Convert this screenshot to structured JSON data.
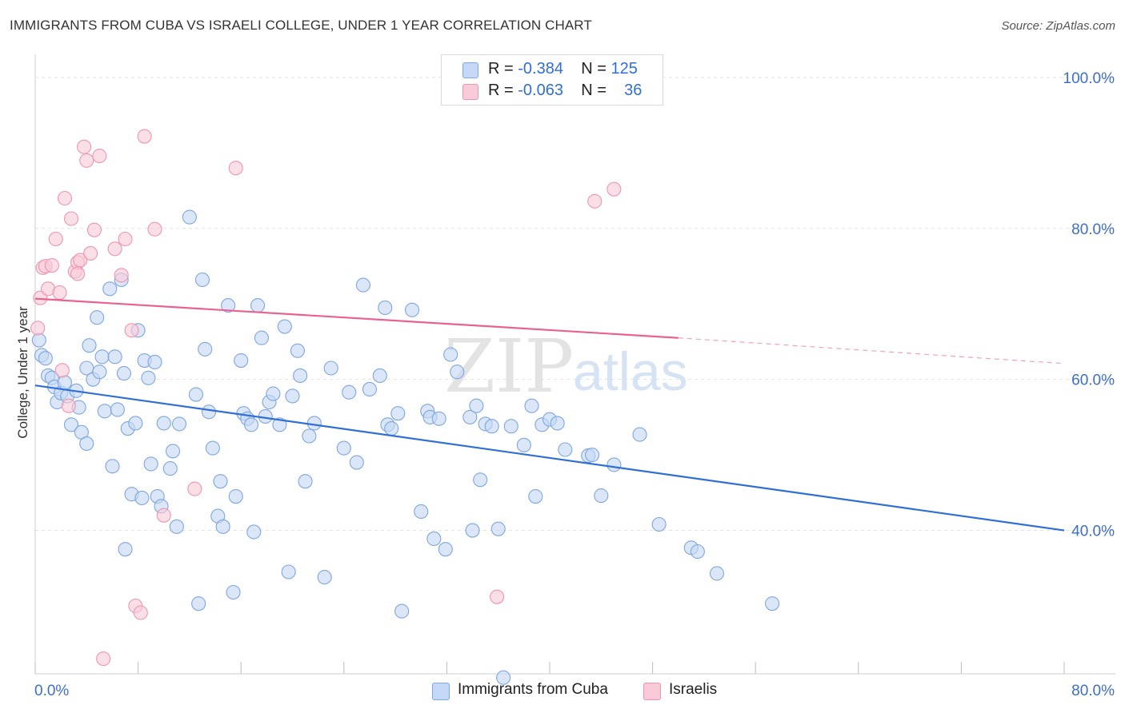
{
  "title": "IMMIGRANTS FROM CUBA VS ISRAELI COLLEGE, UNDER 1 YEAR CORRELATION CHART",
  "source": "Source: ZipAtlas.com",
  "watermark": {
    "zip": "ZIP",
    "atlas": "atlas"
  },
  "legend": {
    "rows": [
      {
        "r_label": "R = ",
        "r_value": "-0.384",
        "n_label": "N = ",
        "n_value": "125"
      },
      {
        "r_label": "R = ",
        "r_value": "-0.063",
        "n_label": "N = ",
        "n_value": "36"
      }
    ]
  },
  "colors": {
    "blue_fill": "#c5d8f5",
    "blue_stroke": "#7ea6e0",
    "blue_line": "#2f6fd6",
    "pink_fill": "#f9cbd8",
    "pink_stroke": "#f095b1",
    "pink_line": "#e8638e",
    "axis_text": "#3d6fc7",
    "grid": "#e2e2e2"
  },
  "chart_data": {
    "type": "scatter",
    "title": "IMMIGRANTS FROM CUBA VS ISRAELI COLLEGE, UNDER 1 YEAR CORRELATION CHART",
    "xlabel": "",
    "ylabel": "College, Under 1 year",
    "xlim": [
      0,
      80
    ],
    "ylim": [
      21,
      102
    ],
    "x_tick_labels": [
      "0.0%",
      "80.0%"
    ],
    "y_tick_labels": [
      "100.0%",
      "80.0%",
      "60.0%",
      "40.0%"
    ],
    "y_ticks": [
      100,
      80,
      60,
      40
    ],
    "grid": true,
    "legend_position": "bottom",
    "series": [
      {
        "name": "Immigrants from Cuba",
        "trend": {
          "x": [
            0,
            80
          ],
          "y": [
            59.2,
            40.0
          ]
        },
        "points": [
          [
            0.3,
            65.2
          ],
          [
            0.5,
            63.2
          ],
          [
            0.8,
            62.8
          ],
          [
            1.0,
            60.5
          ],
          [
            1.3,
            60.2
          ],
          [
            1.5,
            59.0
          ],
          [
            1.7,
            57.0
          ],
          [
            2.0,
            58.2
          ],
          [
            2.3,
            59.6
          ],
          [
            2.5,
            57.8
          ],
          [
            2.8,
            54.0
          ],
          [
            3.2,
            58.5
          ],
          [
            3.4,
            56.3
          ],
          [
            3.6,
            53.0
          ],
          [
            4.0,
            51.5
          ],
          [
            4.0,
            61.5
          ],
          [
            4.2,
            64.5
          ],
          [
            4.5,
            60.0
          ],
          [
            4.8,
            68.2
          ],
          [
            5.0,
            61.0
          ],
          [
            5.2,
            63.0
          ],
          [
            5.4,
            55.8
          ],
          [
            5.8,
            72.0
          ],
          [
            6.0,
            48.5
          ],
          [
            6.2,
            63.0
          ],
          [
            6.4,
            56.0
          ],
          [
            6.7,
            73.2
          ],
          [
            6.9,
            60.8
          ],
          [
            7.0,
            37.5
          ],
          [
            7.2,
            53.5
          ],
          [
            7.5,
            44.8
          ],
          [
            7.8,
            54.2
          ],
          [
            8.0,
            66.5
          ],
          [
            8.3,
            44.3
          ],
          [
            8.5,
            62.5
          ],
          [
            8.8,
            60.2
          ],
          [
            9.0,
            48.8
          ],
          [
            9.3,
            62.3
          ],
          [
            9.5,
            44.5
          ],
          [
            9.8,
            43.2
          ],
          [
            10.0,
            54.2
          ],
          [
            10.5,
            48.2
          ],
          [
            10.7,
            50.5
          ],
          [
            11.0,
            40.5
          ],
          [
            11.2,
            54.1
          ],
          [
            12.0,
            81.5
          ],
          [
            12.5,
            58.0
          ],
          [
            12.7,
            30.3
          ],
          [
            13.0,
            73.2
          ],
          [
            13.2,
            64.0
          ],
          [
            13.5,
            55.7
          ],
          [
            13.8,
            50.9
          ],
          [
            14.2,
            41.9
          ],
          [
            14.4,
            46.5
          ],
          [
            14.6,
            40.5
          ],
          [
            15.0,
            69.8
          ],
          [
            15.4,
            31.8
          ],
          [
            15.6,
            44.5
          ],
          [
            16.0,
            62.5
          ],
          [
            16.2,
            55.5
          ],
          [
            16.5,
            54.8
          ],
          [
            16.8,
            54.0
          ],
          [
            17.0,
            39.8
          ],
          [
            17.3,
            69.8
          ],
          [
            17.6,
            65.5
          ],
          [
            17.9,
            55.1
          ],
          [
            18.2,
            57.0
          ],
          [
            18.5,
            58.1
          ],
          [
            19.0,
            54.0
          ],
          [
            19.4,
            67.0
          ],
          [
            19.7,
            34.5
          ],
          [
            20.0,
            57.8
          ],
          [
            20.4,
            63.8
          ],
          [
            20.6,
            60.5
          ],
          [
            21.0,
            46.5
          ],
          [
            21.3,
            52.5
          ],
          [
            21.7,
            54.2
          ],
          [
            22.5,
            33.8
          ],
          [
            23.0,
            61.5
          ],
          [
            24.0,
            50.9
          ],
          [
            24.4,
            58.3
          ],
          [
            25.0,
            49.0
          ],
          [
            25.5,
            72.5
          ],
          [
            26.0,
            58.7
          ],
          [
            26.8,
            60.5
          ],
          [
            27.2,
            69.5
          ],
          [
            27.4,
            54.0
          ],
          [
            27.7,
            53.5
          ],
          [
            28.2,
            55.5
          ],
          [
            28.5,
            29.3
          ],
          [
            29.3,
            69.2
          ],
          [
            30.0,
            42.5
          ],
          [
            30.5,
            55.8
          ],
          [
            30.7,
            55.0
          ],
          [
            31.0,
            38.9
          ],
          [
            31.4,
            54.8
          ],
          [
            31.9,
            37.5
          ],
          [
            32.3,
            63.3
          ],
          [
            32.8,
            61.0
          ],
          [
            33.8,
            55.0
          ],
          [
            34.0,
            40.0
          ],
          [
            34.3,
            56.5
          ],
          [
            34.6,
            46.7
          ],
          [
            35.0,
            54.1
          ],
          [
            35.5,
            53.8
          ],
          [
            36.0,
            40.2
          ],
          [
            37.0,
            53.8
          ],
          [
            38.0,
            51.3
          ],
          [
            38.6,
            56.5
          ],
          [
            38.9,
            44.5
          ],
          [
            39.4,
            54.0
          ],
          [
            40.0,
            54.7
          ],
          [
            40.6,
            54.2
          ],
          [
            41.2,
            50.7
          ],
          [
            43.0,
            49.9
          ],
          [
            43.3,
            50.0
          ],
          [
            44.0,
            44.6
          ],
          [
            45.0,
            48.7
          ],
          [
            47.0,
            52.7
          ],
          [
            48.5,
            40.8
          ],
          [
            51.0,
            37.7
          ],
          [
            51.5,
            37.2
          ],
          [
            53.0,
            34.3
          ],
          [
            57.3,
            30.3
          ],
          [
            36.4,
            20.5
          ]
        ]
      },
      {
        "name": "Israelis",
        "trend": {
          "x": [
            0,
            50
          ],
          "y": [
            70.7,
            65.5
          ]
        },
        "trend_dashed": {
          "x": [
            50,
            80
          ],
          "y": [
            65.5,
            62.1
          ]
        },
        "points": [
          [
            0.2,
            66.8
          ],
          [
            0.4,
            70.8
          ],
          [
            0.6,
            74.8
          ],
          [
            0.8,
            75.0
          ],
          [
            1.0,
            72.0
          ],
          [
            1.3,
            75.1
          ],
          [
            1.6,
            78.6
          ],
          [
            1.9,
            71.5
          ],
          [
            2.1,
            61.2
          ],
          [
            2.3,
            84.0
          ],
          [
            2.6,
            56.5
          ],
          [
            2.8,
            81.3
          ],
          [
            3.1,
            74.3
          ],
          [
            3.3,
            75.5
          ],
          [
            3.5,
            75.8
          ],
          [
            3.8,
            90.8
          ],
          [
            4.0,
            89.0
          ],
          [
            4.3,
            76.7
          ],
          [
            4.6,
            79.8
          ],
          [
            5.0,
            89.6
          ],
          [
            5.3,
            23.0
          ],
          [
            6.2,
            77.3
          ],
          [
            6.7,
            73.8
          ],
          [
            7.0,
            78.6
          ],
          [
            7.5,
            66.5
          ],
          [
            7.8,
            30.0
          ],
          [
            8.2,
            29.1
          ],
          [
            8.5,
            92.2
          ],
          [
            9.3,
            79.9
          ],
          [
            10.0,
            42.0
          ],
          [
            12.4,
            45.5
          ],
          [
            15.6,
            88.0
          ],
          [
            35.9,
            31.2
          ],
          [
            43.5,
            83.6
          ],
          [
            45.0,
            85.2
          ],
          [
            3.3,
            74.0
          ]
        ]
      }
    ]
  }
}
